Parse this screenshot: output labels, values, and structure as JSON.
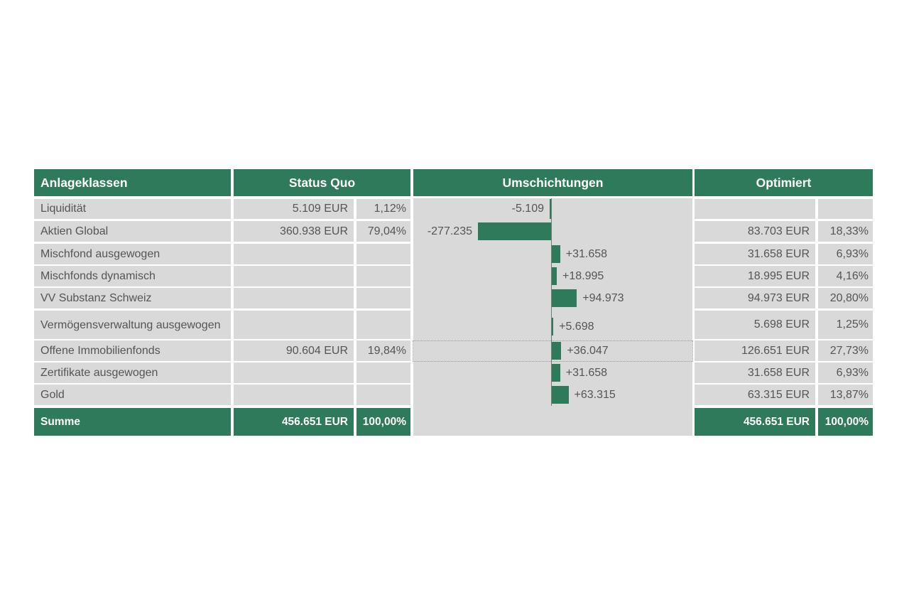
{
  "headers": {
    "asset_classes": "Anlageklassen",
    "status_quo": "Status Quo",
    "reallocations": "Umschichtungen",
    "optimized": "Optimiert"
  },
  "rows": [
    {
      "label": "Liquidität",
      "sq_value": "5.109 EUR",
      "sq_pct": "1,12%",
      "change_label": "-5.109",
      "opt_value": "",
      "opt_pct": ""
    },
    {
      "label": "Aktien Global",
      "sq_value": "360.938 EUR",
      "sq_pct": "79,04%",
      "change_label": "-277.235",
      "opt_value": "83.703 EUR",
      "opt_pct": "18,33%"
    },
    {
      "label": "Mischfond ausgewogen",
      "sq_value": "",
      "sq_pct": "",
      "change_label": "+31.658",
      "opt_value": "31.658 EUR",
      "opt_pct": "6,93%"
    },
    {
      "label": "Mischfonds dynamisch",
      "sq_value": "",
      "sq_pct": "",
      "change_label": "+18.995",
      "opt_value": "18.995 EUR",
      "opt_pct": "4,16%"
    },
    {
      "label": "VV Substanz Schweiz",
      "sq_value": "",
      "sq_pct": "",
      "change_label": "+94.973",
      "opt_value": "94.973 EUR",
      "opt_pct": "20,80%"
    },
    {
      "label": "Vermögensverwaltung ausgewogen",
      "sq_value": "",
      "sq_pct": "",
      "change_label": "+5.698",
      "opt_value": "5.698 EUR",
      "opt_pct": "1,25%"
    },
    {
      "label": "Offene Immobilienfonds",
      "sq_value": "90.604 EUR",
      "sq_pct": "19,84%",
      "change_label": "+36.047",
      "opt_value": "126.651 EUR",
      "opt_pct": "27,73%"
    },
    {
      "label": "Zertifikate ausgewogen",
      "sq_value": "",
      "sq_pct": "",
      "change_label": "+31.658",
      "opt_value": "31.658 EUR",
      "opt_pct": "6,93%"
    },
    {
      "label": "Gold",
      "sq_value": "",
      "sq_pct": "",
      "change_label": "+63.315",
      "opt_value": "63.315 EUR",
      "opt_pct": "13,87%"
    }
  ],
  "total": {
    "label": "Summe",
    "sq_value": "456.651 EUR",
    "sq_pct": "100,00%",
    "opt_value": "456.651 EUR",
    "opt_pct": "100,00%"
  },
  "chart_data": {
    "type": "bar",
    "orientation": "horizontal",
    "categories": [
      "Liquidität",
      "Aktien Global",
      "Mischfond ausgewogen",
      "Mischfonds dynamisch",
      "VV Substanz Schweiz",
      "Vermögensverwaltung ausgewogen",
      "Offene Immobilienfonds",
      "Zertifikate ausgewogen",
      "Gold"
    ],
    "values": [
      -5109,
      -277235,
      31658,
      18995,
      94973,
      5698,
      36047,
      31658,
      63315
    ],
    "title": "Umschichtungen",
    "bar_color": "#307a5c"
  },
  "colors": {
    "accent": "#307a5c",
    "cell_background": "#d9d9d9",
    "text": "#555555"
  }
}
